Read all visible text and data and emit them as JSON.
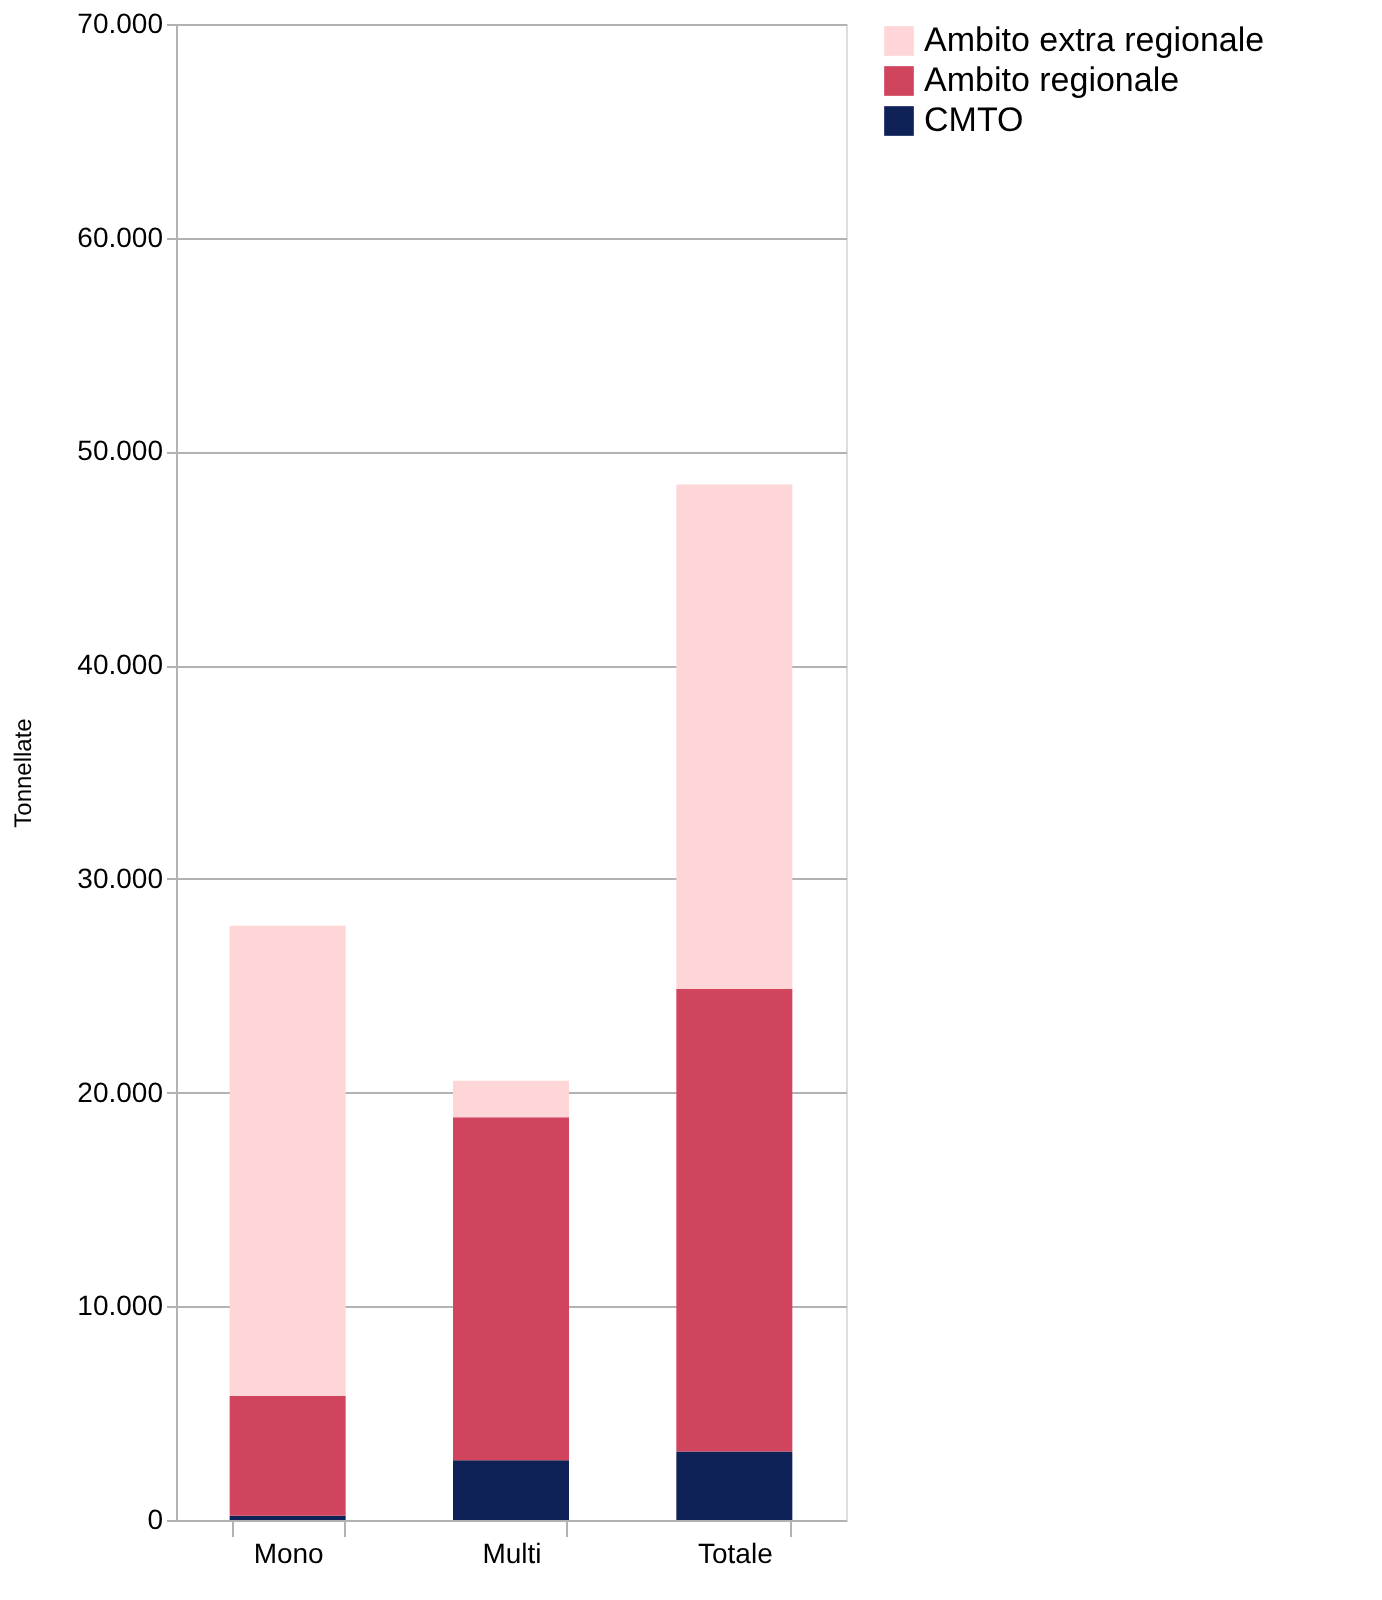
{
  "chart_data": {
    "type": "bar",
    "stacked": true,
    "ylabel": "Tonnellate",
    "categories": [
      "Mono",
      "Multi",
      "Totale"
    ],
    "series": [
      {
        "name": "CMTO",
        "color": "#0e2258",
        "values": [
          200,
          2800,
          3200
        ]
      },
      {
        "name": "Ambito regionale",
        "color": "#d0445e",
        "values": [
          5600,
          16050,
          21650
        ]
      },
      {
        "name": "Ambito extra regionale",
        "color": "#fed6d7",
        "values": [
          22000,
          1700,
          23600
        ]
      }
    ],
    "ylim": [
      0,
      70000
    ],
    "yticks": [
      0,
      {
        "value": 10000,
        "label": "10.000"
      },
      {
        "value": 20000,
        "label": "20.000"
      },
      {
        "value": 30000,
        "label": "30.000"
      },
      {
        "value": 40000,
        "label": "40.000"
      },
      {
        "value": 50000,
        "label": "50.000"
      },
      {
        "value": 60000,
        "label": "60.000"
      },
      {
        "value": 70000,
        "label": "70.000"
      }
    ],
    "grid": "y",
    "legend": "top right"
  }
}
